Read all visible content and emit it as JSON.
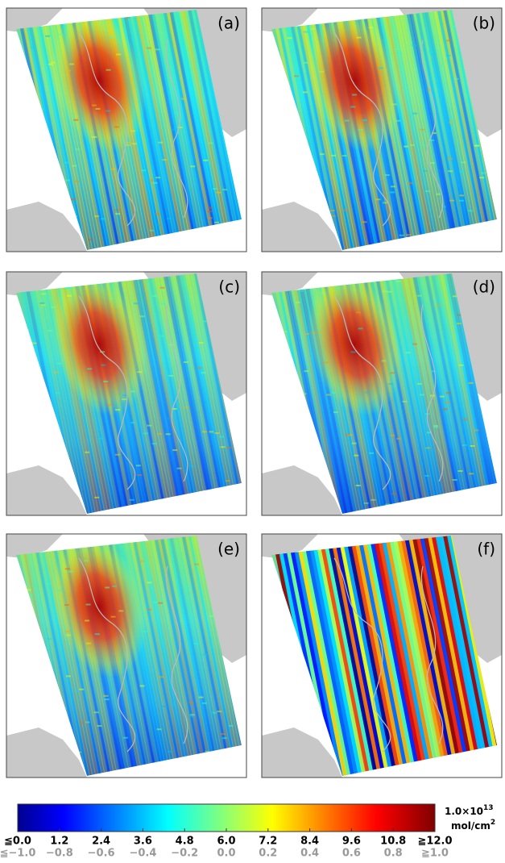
{
  "panels": [
    {
      "label": "(a)"
    },
    {
      "label": "(b)"
    },
    {
      "label": "(c)"
    },
    {
      "label": "(d)"
    },
    {
      "label": "(e)"
    },
    {
      "label": "(f)"
    }
  ],
  "colorbar": {
    "unit": "1.0×10",
    "unit_exp": "13",
    "unit2": "mol/cm",
    "unit2_exp": "2",
    "range": [
      0,
      12
    ],
    "ticks": [
      {
        "value": 0,
        "label": "≦0.0"
      },
      1.2,
      2.4,
      3.6,
      4.8,
      {
        "value": 6,
        "label": "6.0"
      },
      7.2,
      8.4,
      9.6,
      10.8,
      {
        "value": 12,
        "label": "≧12.0"
      }
    ],
    "range2": [
      -1,
      1
    ],
    "ticks2": [
      {
        "value": -1,
        "label": "≦−1.0"
      },
      {
        "value": -0.8,
        "label": "−0.8"
      },
      {
        "value": -0.6,
        "label": "−0.6"
      },
      {
        "value": -0.4,
        "label": "−0.4"
      },
      {
        "value": -0.2,
        "label": "−0.2"
      },
      {
        "value": 0,
        "label": "0.0"
      },
      0.2,
      0.4,
      0.6,
      0.8,
      {
        "value": 1,
        "label": "≧1.0"
      }
    ]
  }
}
